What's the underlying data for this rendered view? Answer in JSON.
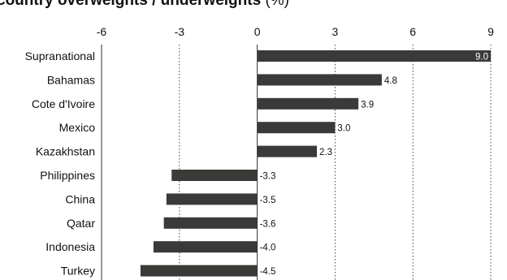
{
  "chart_data": {
    "type": "bar",
    "orientation": "horizontal",
    "title": "country overweights / underweights",
    "title_unit": "(%)",
    "categories": [
      "Supranational",
      "Bahamas",
      "Cote d'Ivoire",
      "Mexico",
      "Kazakhstan",
      "Philippines",
      "China",
      "Qatar",
      "Indonesia",
      "Turkey"
    ],
    "values": [
      9.0,
      4.8,
      3.9,
      3.0,
      2.3,
      -3.3,
      -3.5,
      -3.6,
      -4.0,
      -4.5
    ],
    "value_labels": [
      "9.0",
      "4.8",
      "3.9",
      "3.0",
      "2.3",
      "-3.3",
      "-3.5",
      "-3.6",
      "-4.0",
      "-4.5"
    ],
    "xlim": [
      -6,
      9
    ],
    "xticks": [
      -6,
      -3,
      0,
      3,
      6,
      9
    ],
    "xtick_labels": [
      "-6",
      "-3",
      "0",
      "3",
      "6",
      "9"
    ],
    "grid": "vertical dotted",
    "legend": "none",
    "bar_color": "#3a3b38",
    "text_color": "#111111"
  }
}
